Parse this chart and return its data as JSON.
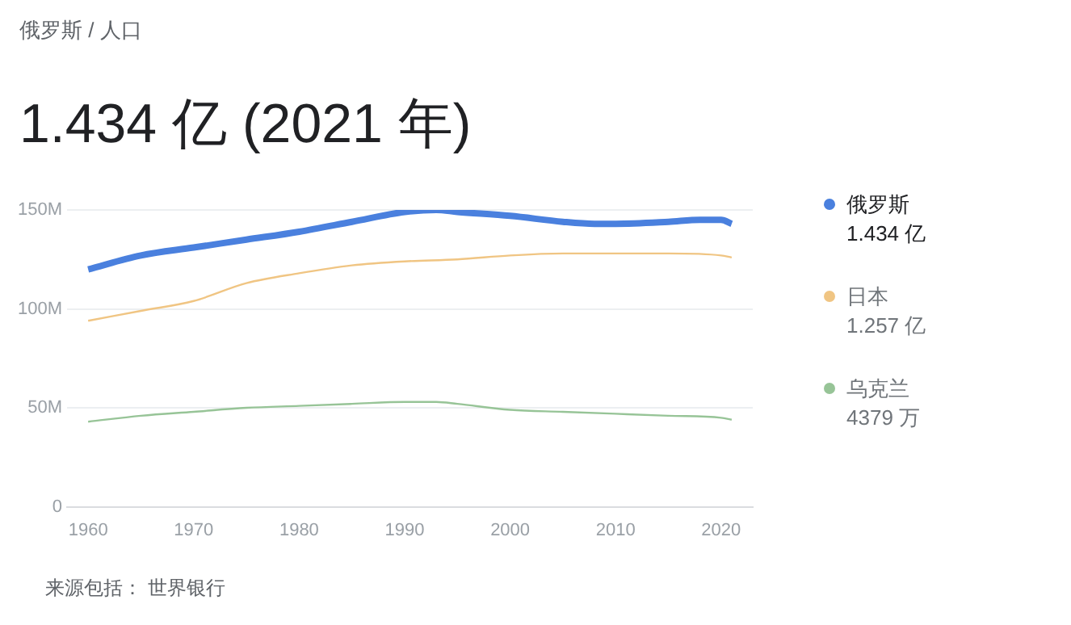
{
  "chart_data": {
    "type": "line",
    "subtitle": "俄罗斯 / 人口",
    "title": "1.434 亿 (2021 年)",
    "series": [
      {
        "name": "俄罗斯",
        "color": "#4a80de",
        "x": [
          1960,
          1965,
          1970,
          1975,
          1980,
          1985,
          1990,
          1993,
          1995,
          2000,
          2005,
          2008,
          2010,
          2015,
          2018,
          2020,
          2021
        ],
        "values": [
          120,
          127,
          131,
          135,
          139,
          144,
          149,
          150,
          149,
          147,
          144,
          143,
          143,
          144,
          145,
          145,
          143
        ]
      },
      {
        "name": "日本",
        "color": "#f0c583",
        "x": [
          1960,
          1965,
          1970,
          1975,
          1980,
          1985,
          1990,
          1995,
          2000,
          2005,
          2010,
          2015,
          2020,
          2021
        ],
        "values": [
          94,
          99,
          104,
          113,
          118,
          122,
          124,
          125,
          127,
          128,
          128,
          128,
          127,
          126
        ]
      },
      {
        "name": "乌克兰",
        "color": "#97c497",
        "x": [
          1960,
          1965,
          1970,
          1975,
          1980,
          1985,
          1990,
          1993,
          1995,
          2000,
          2005,
          2010,
          2015,
          2020,
          2021
        ],
        "values": [
          43,
          46,
          48,
          50,
          51,
          52,
          53,
          53,
          52,
          49,
          48,
          47,
          46,
          45,
          44
        ]
      }
    ],
    "xlim": [
      1958,
      2023
    ],
    "xticks": [
      1960,
      1970,
      1980,
      1990,
      2000,
      2010,
      2020
    ],
    "ylim": [
      0,
      150
    ],
    "yticks": [
      {
        "value": 0,
        "label": "0"
      },
      {
        "value": 50,
        "label": "50M"
      },
      {
        "value": 100,
        "label": "100M"
      },
      {
        "value": 150,
        "label": "150M"
      }
    ],
    "grid": "y",
    "legend": "right",
    "marker": "none",
    "line_style": "solid",
    "annotations": [
      "1.434 亿",
      "1.257 亿",
      "4379 万",
      "来源包括： 世界银行"
    ]
  }
}
